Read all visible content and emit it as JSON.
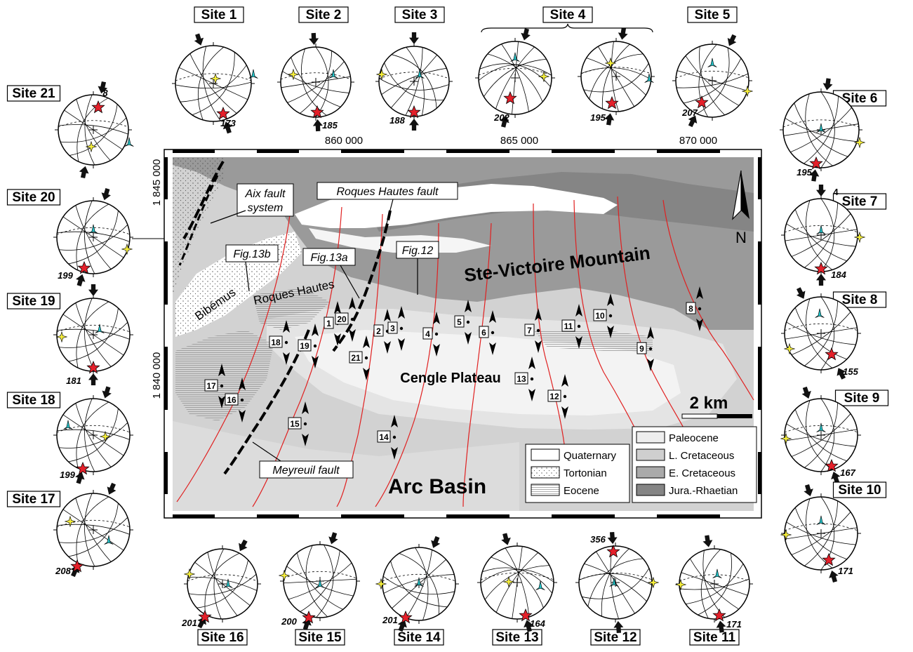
{
  "map": {
    "coords": {
      "x": [
        "860 000",
        "865 000",
        "870 000"
      ],
      "y": [
        "1 845 000",
        "1 840 000"
      ]
    },
    "places": {
      "mountain": "Ste-Victoire Mountain",
      "plateau": "Cengle Plateau",
      "basin": "Arc Basin",
      "bibemus": "Bibémus",
      "roques": "Roques Hautes"
    },
    "callouts": {
      "aix": [
        "Aix fault",
        "system"
      ],
      "roques_fault": "Roques Hautes fault",
      "meyreuil": "Meyreuil fault",
      "fig13b": "Fig.13b",
      "fig13a": "Fig.13a",
      "fig12": "Fig.12"
    },
    "north": "N",
    "scale": "2 km",
    "site_markers": [
      "1",
      "2",
      "3",
      "4",
      "5",
      "6",
      "7",
      "8",
      "9",
      "10",
      "11",
      "12",
      "13",
      "14",
      "15",
      "16",
      "17",
      "18",
      "19",
      "20",
      "21"
    ],
    "legend": [
      {
        "label": "Quaternary",
        "color": "#ffffff"
      },
      {
        "label": "Tortonian",
        "color": "#ffffff"
      },
      {
        "label": "Eocene",
        "color": "#ffffff"
      },
      {
        "label": "Paleocene",
        "color": "#eeeeee"
      },
      {
        "label": "L. Cretaceous",
        "color": "#cfcfcf"
      },
      {
        "label": "E. Cretaceous",
        "color": "#aaaaaa"
      },
      {
        "label": "Jura.-Rhaetian",
        "color": "#858585"
      }
    ]
  },
  "sites": [
    {
      "label": "Site 1",
      "value": "173"
    },
    {
      "label": "Site 2",
      "value": "185"
    },
    {
      "label": "Site 3",
      "value": "188"
    },
    {
      "label": "Site 4",
      "values": [
        "202",
        "195"
      ]
    },
    {
      "label": "Site 5",
      "value": "207"
    },
    {
      "label": "Site 6",
      "value": "195"
    },
    {
      "label": "Site 7",
      "value": "184",
      "extra": "4"
    },
    {
      "label": "Site 8",
      "value": "155"
    },
    {
      "label": "Site 9",
      "value": "167"
    },
    {
      "label": "Site 10",
      "value": "171"
    },
    {
      "label": "Site 11",
      "value": "171"
    },
    {
      "label": "Site 12",
      "value": "356"
    },
    {
      "label": "Site 13",
      "value": "164"
    },
    {
      "label": "Site 14",
      "value": "201"
    },
    {
      "label": "Site 15",
      "value": "200"
    },
    {
      "label": "Site 16",
      "value": "201"
    },
    {
      "label": "Site 17",
      "value": "208"
    },
    {
      "label": "Site 18",
      "value": "199"
    },
    {
      "label": "Site 19",
      "value": "181"
    },
    {
      "label": "Site 20",
      "value": "199"
    },
    {
      "label": "Site 21",
      "value": "8"
    }
  ],
  "colors": {
    "star_sigma1": "#e4202a",
    "star_sigma2": "#f5ee3a",
    "star_sigma3": "#22c3c8",
    "fault_red": "#e02020"
  }
}
